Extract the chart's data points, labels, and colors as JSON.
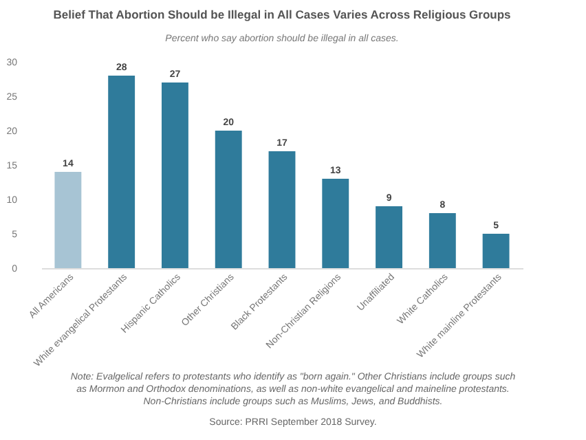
{
  "chart_data": {
    "type": "bar",
    "title": "Belief That Abortion Should be Illegal in All Cases Varies Across Religious Groups",
    "subtitle": "Percent who say abortion should be illegal in all cases.",
    "categories": [
      "All Americans",
      "White evangelical Protestants",
      "Hispanic Catholics",
      "Other Christians",
      "Black Protestants",
      "Non-Christian Religions",
      "Unaffiliated",
      "White Catholics",
      "White mainline Protestants"
    ],
    "values": [
      14,
      28,
      27,
      20,
      17,
      13,
      9,
      8,
      5
    ],
    "colors": [
      "#a7c4d4",
      "#2f7b9b",
      "#2f7b9b",
      "#2f7b9b",
      "#2f7b9b",
      "#2f7b9b",
      "#2f7b9b",
      "#2f7b9b",
      "#2f7b9b"
    ],
    "ylim": [
      0,
      30
    ],
    "yticks": [
      0,
      5,
      10,
      15,
      20,
      25,
      30
    ],
    "grid": false,
    "data_labels": true,
    "annotations": [
      "Note: Evalgelical refers to protestants who identify as \"born again.\" Other Christians include groups such as Mormon and Orthodox denominations, as well as non-white evangelical and maineline protestants. Non-Christians include groups such as Muslims, Jews, and Buddhists.",
      "Source: PRRI September 2018 Survey."
    ]
  }
}
